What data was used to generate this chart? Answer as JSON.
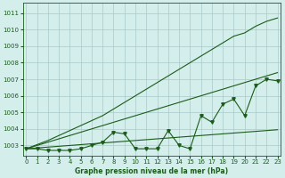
{
  "title": "Graphe pression niveau de la mer (hPa)",
  "bg_color": "#d4eeec",
  "grid_color": "#aacaca",
  "line_color": "#1a5c1a",
  "x_ticks": [
    0,
    1,
    2,
    3,
    4,
    5,
    6,
    7,
    8,
    9,
    10,
    11,
    12,
    13,
    14,
    15,
    16,
    17,
    18,
    19,
    20,
    21,
    22,
    23
  ],
  "y_ticks": [
    1003,
    1004,
    1005,
    1006,
    1007,
    1008,
    1009,
    1010,
    1011
  ],
  "ylim": [
    1002.4,
    1011.6
  ],
  "xlim": [
    -0.3,
    23.3
  ],
  "data_y": [
    1002.8,
    1002.8,
    1002.7,
    1002.7,
    1002.7,
    1002.8,
    1003.0,
    1003.2,
    1003.8,
    1003.7,
    1002.8,
    1002.8,
    1002.8,
    1003.9,
    1003.0,
    1002.8,
    1004.8,
    1004.4,
    1005.5,
    1005.8,
    1004.8,
    1006.6,
    1007.0,
    1006.9
  ],
  "line_lower_y": [
    1002.8,
    1002.85,
    1002.9,
    1002.95,
    1003.0,
    1003.05,
    1003.1,
    1003.15,
    1003.2,
    1003.25,
    1003.3,
    1003.35,
    1003.4,
    1003.45,
    1003.5,
    1003.55,
    1003.6,
    1003.65,
    1003.7,
    1003.75,
    1003.8,
    1003.85,
    1003.9,
    1003.95
  ],
  "line_mid_y": [
    1002.8,
    1003.0,
    1003.2,
    1003.4,
    1003.6,
    1003.8,
    1004.0,
    1004.2,
    1004.4,
    1004.6,
    1004.8,
    1005.0,
    1005.2,
    1005.4,
    1005.6,
    1005.8,
    1006.0,
    1006.2,
    1006.4,
    1006.6,
    1006.8,
    1007.0,
    1007.2,
    1007.4
  ],
  "line_upper_y": [
    1002.8,
    1003.05,
    1003.3,
    1003.6,
    1003.9,
    1004.2,
    1004.5,
    1004.8,
    1005.2,
    1005.6,
    1006.0,
    1006.4,
    1006.8,
    1007.2,
    1007.6,
    1008.0,
    1008.4,
    1008.8,
    1009.2,
    1009.6,
    1009.8,
    1010.2,
    1010.5,
    1010.7
  ]
}
